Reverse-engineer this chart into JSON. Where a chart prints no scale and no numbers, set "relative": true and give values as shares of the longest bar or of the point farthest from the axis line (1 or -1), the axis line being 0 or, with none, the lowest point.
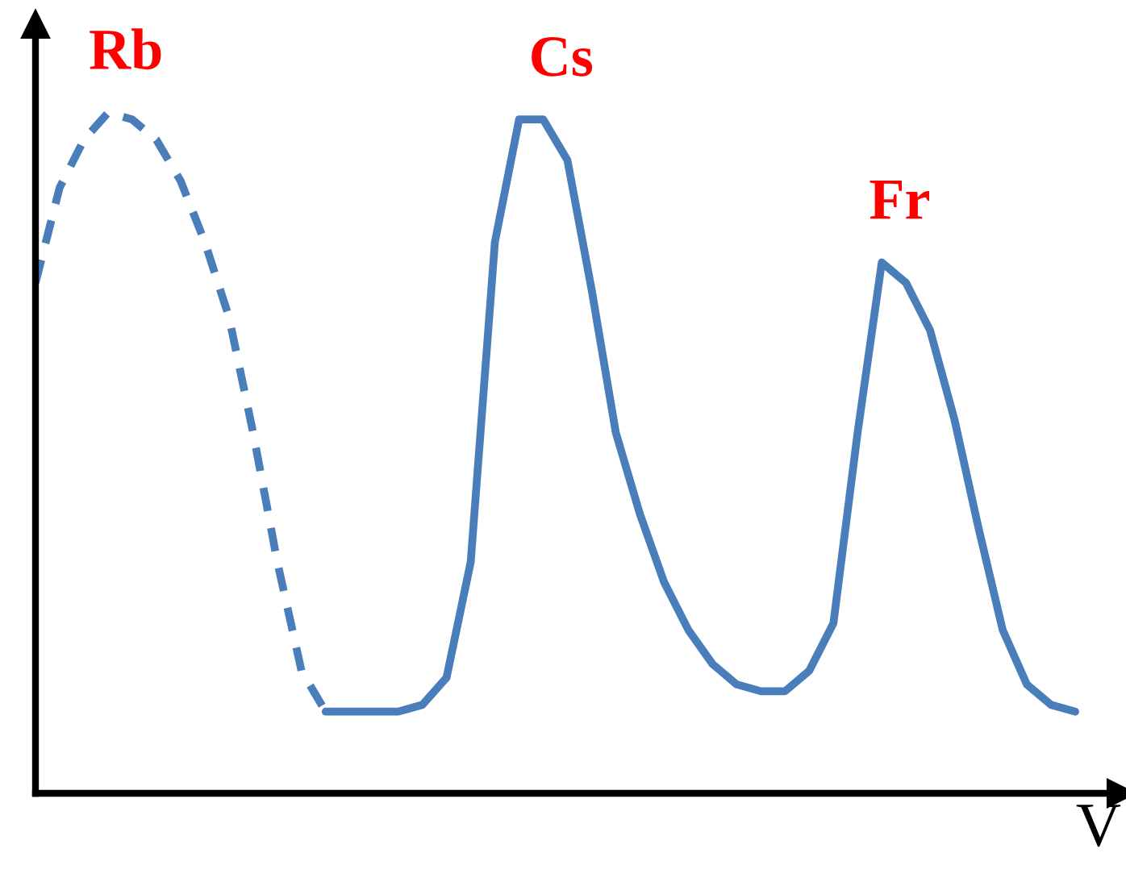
{
  "chart_data": {
    "type": "line",
    "relative": true,
    "xlabel": "V",
    "categories": [
      null,
      null,
      null,
      null,
      null,
      null,
      null,
      null,
      null,
      null,
      null,
      null,
      null,
      null,
      null,
      null,
      null,
      null,
      null,
      null,
      null,
      null,
      null,
      null,
      null,
      null,
      null,
      null,
      null,
      null,
      null,
      null,
      null,
      null,
      null,
      null,
      null,
      null,
      null,
      null,
      null,
      null,
      null,
      null,
      null
    ],
    "series": [
      {
        "color": "#4a7ebb",
        "line_style": "dashed",
        "values": [
          0.75,
          0.89,
          0.96,
          1.0,
          0.99,
          0.96,
          0.9,
          0.81,
          0.7,
          0.53,
          0.34,
          0.18,
          0.12,
          null,
          null,
          null,
          null,
          null,
          null,
          null,
          null,
          null,
          null,
          null,
          null,
          null,
          null,
          null,
          null,
          null,
          null,
          null,
          null,
          null,
          null,
          null,
          null,
          null,
          null,
          null,
          null,
          null,
          null,
          null,
          null
        ]
      },
      {
        "color": "#4a7ebb",
        "line_style": "solid",
        "values": [
          null,
          null,
          null,
          null,
          null,
          null,
          null,
          null,
          null,
          null,
          null,
          null,
          0.12,
          0.12,
          0.12,
          0.12,
          0.13,
          0.17,
          0.34,
          0.81,
          0.99,
          0.99,
          0.93,
          0.74,
          0.53,
          0.41,
          0.31,
          0.24,
          0.19,
          0.16,
          0.15,
          0.15,
          0.18,
          0.25,
          0.53,
          0.78,
          0.75,
          0.68,
          0.55,
          0.39,
          0.24,
          0.16,
          0.13,
          0.12,
          null
        ]
      }
    ],
    "annotations": [
      "Rb",
      "Cs",
      "Fr"
    ]
  }
}
